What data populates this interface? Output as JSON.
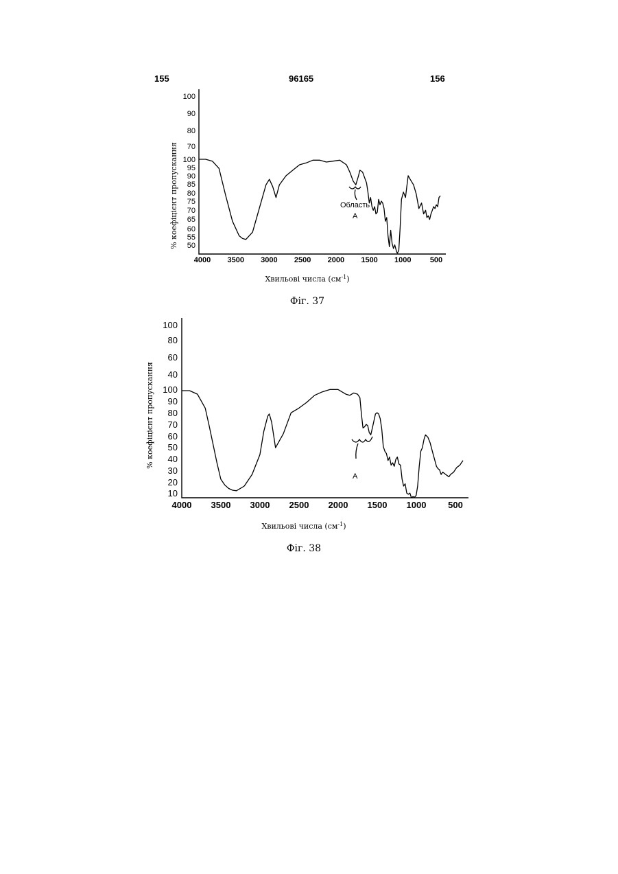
{
  "header": {
    "left": "155",
    "center": "96165",
    "right": "156"
  },
  "chart_data": [
    {
      "type": "line",
      "caption": "Фіг. 37",
      "xlabel": "Хвильові числа (см",
      "xlabel_sup": "-1",
      "xlabel_end": ")",
      "ylabel": "% коефіцієнт пропускання",
      "x_ticks": [
        "4000",
        "3500",
        "3000",
        "2500",
        "2000",
        "1500",
        "1000",
        "500"
      ],
      "x_range": [
        4000,
        400
      ],
      "y_ticks_upper": [
        "100",
        "90",
        "80",
        "70"
      ],
      "y_ticks_lower": [
        "100",
        "95",
        "90",
        "85",
        "80",
        "75",
        "70",
        "65",
        "60",
        "55",
        "50"
      ],
      "y_range": [
        48,
        100
      ],
      "annotations": [
        "Область",
        "А"
      ],
      "series": [
        {
          "x": [
            4000,
            3900,
            3800,
            3700,
            3600,
            3500,
            3400,
            3350,
            3300,
            3200,
            3100,
            3000,
            2950,
            2900,
            2850,
            2800,
            2700,
            2600,
            2500,
            2400,
            2300,
            2200,
            2100,
            2000,
            1900,
            1800,
            1750,
            1700,
            1660,
            1620,
            1600,
            1560,
            1500,
            1480,
            1460,
            1440,
            1420,
            1400,
            1380,
            1360,
            1340,
            1320,
            1300,
            1280,
            1260,
            1240,
            1220,
            1200,
            1180,
            1160,
            1140,
            1120,
            1100,
            1080,
            1050,
            1040,
            1020,
            1000,
            980,
            950,
            920,
            900,
            880,
            850,
            800,
            760,
            720,
            680,
            650,
            620,
            600,
            580,
            560,
            540,
            520,
            500,
            480,
            460,
            440,
            420,
            400
          ],
          "y": [
            100,
            100,
            99,
            95,
            80,
            66,
            58,
            56.5,
            56,
            60,
            73,
            86,
            89,
            85,
            79,
            86,
            91,
            94,
            97,
            98,
            99.5,
            99.5,
            98.5,
            99,
            99.5,
            97,
            93,
            88,
            86,
            91,
            94,
            93,
            87,
            82,
            76,
            79,
            74,
            72,
            74,
            70,
            71,
            78,
            75,
            77,
            76,
            73,
            66,
            68,
            58,
            52,
            61,
            54,
            51,
            53,
            49,
            48.5,
            50,
            62,
            78,
            82,
            79,
            85,
            91,
            89,
            86,
            81,
            73,
            76,
            70,
            72,
            68,
            69,
            67,
            70,
            72,
            74,
            73,
            75,
            74,
            79,
            80
          ]
        }
      ]
    },
    {
      "type": "line",
      "caption": "Фіг. 38",
      "xlabel": "Хвильові числа (см",
      "xlabel_sup": "-1",
      "xlabel_end": ")",
      "ylabel": "% коефіцієнт пропускання",
      "x_ticks": [
        "4000",
        "3500",
        "3000",
        "2500",
        "2000",
        "1500",
        "1000",
        "500"
      ],
      "x_range": [
        4000,
        400
      ],
      "y_ticks_upper": [
        "100",
        "80",
        "60",
        "40"
      ],
      "y_ticks_lower": [
        "100",
        "90",
        "80",
        "70",
        "60",
        "50",
        "40",
        "30",
        "20",
        "10"
      ],
      "y_range": [
        8,
        100
      ],
      "annotations": [
        "А"
      ],
      "series": [
        {
          "x": [
            4000,
            3900,
            3800,
            3700,
            3650,
            3600,
            3550,
            3500,
            3450,
            3400,
            3350,
            3300,
            3200,
            3100,
            3000,
            2950,
            2900,
            2880,
            2850,
            2800,
            2700,
            2600,
            2500,
            2400,
            2300,
            2200,
            2100,
            2000,
            1900,
            1850,
            1800,
            1750,
            1720,
            1700,
            1680,
            1660,
            1640,
            1620,
            1600,
            1580,
            1560,
            1520,
            1500,
            1480,
            1460,
            1440,
            1420,
            1400,
            1380,
            1360,
            1340,
            1320,
            1300,
            1280,
            1260,
            1240,
            1220,
            1200,
            1180,
            1160,
            1140,
            1120,
            1100,
            1080,
            1060,
            1040,
            1020,
            1000,
            980,
            960,
            940,
            920,
            900,
            880,
            850,
            820,
            800,
            780,
            760,
            740,
            720,
            700,
            680,
            660,
            640,
            620,
            600,
            580,
            560,
            540,
            520,
            500,
            480,
            460,
            440,
            420,
            400
          ],
          "y": [
            100,
            100,
            97,
            85,
            70,
            54,
            38,
            24,
            19,
            16,
            14.5,
            14,
            18,
            28,
            45,
            65,
            78,
            80,
            73,
            51,
            63,
            81,
            85,
            90,
            96,
            99,
            101,
            101,
            97,
            96,
            98,
            97,
            94,
            80,
            68,
            69,
            71,
            70,
            64,
            62,
            68,
            80,
            81,
            80,
            76,
            67,
            52,
            48,
            46,
            40,
            43,
            36,
            38,
            35,
            41,
            43,
            37,
            36,
            24,
            18,
            20,
            12,
            11,
            12,
            8,
            9,
            8.5,
            10,
            18,
            35,
            48,
            51,
            58,
            62,
            60,
            55,
            50,
            45,
            40,
            35,
            33,
            32,
            28,
            30,
            29,
            28,
            27,
            26,
            28,
            29,
            30,
            32,
            34,
            35,
            36,
            38,
            40
          ]
        }
      ]
    }
  ]
}
